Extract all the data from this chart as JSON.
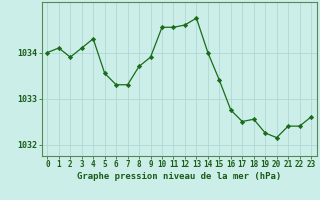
{
  "hours": [
    0,
    1,
    2,
    3,
    4,
    5,
    6,
    7,
    8,
    9,
    10,
    11,
    12,
    13,
    14,
    15,
    16,
    17,
    18,
    19,
    20,
    21,
    22,
    23
  ],
  "pressure": [
    1034.0,
    1034.1,
    1033.9,
    1034.1,
    1034.3,
    1033.55,
    1033.3,
    1033.3,
    1033.7,
    1033.9,
    1034.55,
    1034.55,
    1034.6,
    1034.75,
    1034.0,
    1033.4,
    1032.75,
    1032.5,
    1032.55,
    1032.25,
    1032.15,
    1032.4,
    1032.4,
    1032.6
  ],
  "line_color": "#1a6b1a",
  "marker": "D",
  "marker_size": 2.2,
  "bg_color": "#cceee8",
  "grid_color": "#aad4ce",
  "spine_color": "#558855",
  "tick_color": "#1a5c1a",
  "label_color": "#1a5c1a",
  "title": "Graphe pression niveau de la mer (hPa)",
  "ylim": [
    1031.75,
    1035.1
  ],
  "yticks": [
    1032,
    1033,
    1034
  ],
  "title_fontsize": 6.5,
  "tick_fontsize": 5.5
}
